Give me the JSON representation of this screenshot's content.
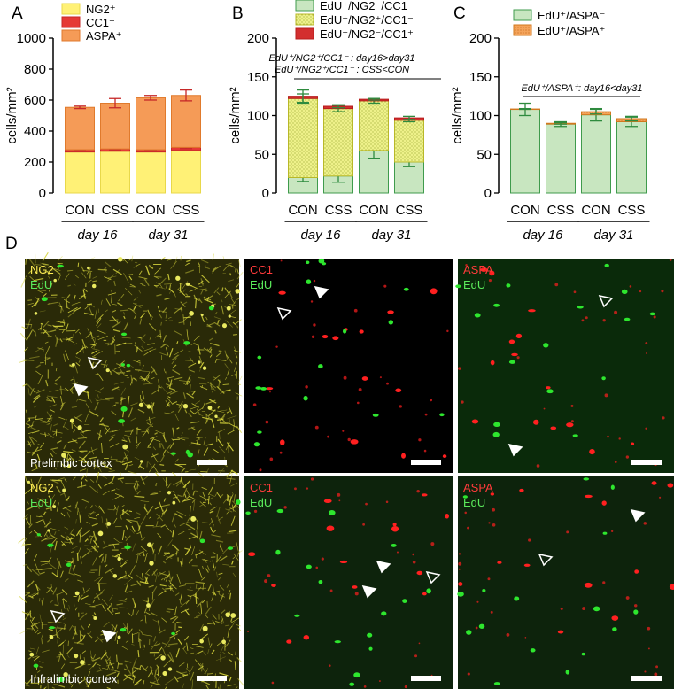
{
  "panels": {
    "a": "A",
    "b": "B",
    "c": "C",
    "d": "D"
  },
  "colors": {
    "ng2": "#fff176",
    "cc1": "#e53935",
    "aspa": "#f59b57",
    "edu_green": "#c8e6c0",
    "edu_ng2_dotted": "#eef18a",
    "edu_cc1_red": "#d32f2f",
    "edu_aspa_orange": "#f4a35a",
    "micro_yellow": "#d6d43c",
    "micro_green": "#2ee62e",
    "micro_red": "#ff2020"
  },
  "chart_data": [
    {
      "type": "bar",
      "stacked": true,
      "categories": [
        "CON",
        "CSS",
        "CON",
        "CSS"
      ],
      "groups": [
        "day 16",
        "day 31"
      ],
      "ylabel": "cells/mm²",
      "ylim": [
        0,
        1000
      ],
      "yticks": [
        "0",
        "200",
        "400",
        "600",
        "800",
        "1000"
      ],
      "legend_position": "top-left",
      "series": [
        {
          "name": "NG2⁺",
          "values": [
            265,
            270,
            265,
            275
          ],
          "error": [
            0,
            0,
            0,
            0
          ]
        },
        {
          "name": "CC1⁺",
          "values": [
            15,
            15,
            15,
            20
          ],
          "error": [
            6,
            6,
            6,
            8
          ]
        },
        {
          "name": "ASPA⁺",
          "values": [
            273,
            295,
            335,
            335
          ],
          "error": [
            8,
            30,
            15,
            35
          ]
        }
      ]
    },
    {
      "type": "bar",
      "stacked": true,
      "categories": [
        "CON",
        "CSS",
        "CON",
        "CSS"
      ],
      "groups": [
        "day 16",
        "day 31"
      ],
      "ylabel": "cells/mm²",
      "ylim": [
        0,
        200
      ],
      "yticks": [
        "0",
        "50",
        "100",
        "150",
        "200"
      ],
      "legend_position": "top",
      "annotations": [
        "EdU⁺/NG2⁺/CC1⁻ : day16>day31",
        "EdU⁺/NG2⁺/CC1⁻ : CSS<CON"
      ],
      "series": [
        {
          "name": "EdU⁺/NG2⁻/CC1⁻",
          "values": [
            20,
            22,
            55,
            40
          ],
          "error": [
            5,
            8,
            10,
            6
          ]
        },
        {
          "name": "EdU⁺/NG2⁺/CC1⁻",
          "values": [
            102,
            87,
            64,
            54
          ],
          "error": [
            6,
            4,
            3,
            2
          ]
        },
        {
          "name": "EdU⁺/NG2⁻/CC1⁺",
          "values": [
            3,
            3,
            2,
            3
          ],
          "error": [
            8,
            2,
            1,
            2
          ]
        }
      ]
    },
    {
      "type": "bar",
      "stacked": true,
      "categories": [
        "CON",
        "CSS",
        "CON",
        "CSS"
      ],
      "groups": [
        "day 16",
        "day 31"
      ],
      "ylabel": "cells/mm²",
      "ylim": [
        0,
        200
      ],
      "yticks": [
        "0",
        "50",
        "100",
        "150",
        "200"
      ],
      "legend_position": "top",
      "annotations": [
        "EdU⁺/ASPA⁺: day16<day31"
      ],
      "series": [
        {
          "name": "EdU⁺/ASPA⁻",
          "values": [
            108,
            89,
            101,
            92
          ],
          "error": [
            8,
            3,
            8,
            6
          ]
        },
        {
          "name": "EdU⁺/ASPA⁺",
          "values": [
            0.5,
            1,
            4,
            4
          ],
          "error": [
            0.5,
            1,
            3,
            3
          ]
        }
      ]
    }
  ],
  "micrographs": [
    {
      "name": "prelimbic-ng2",
      "labels": [
        "NG2",
        "EdU"
      ],
      "region": "Prelimbic cortex",
      "style": "ng2"
    },
    {
      "name": "prelimbic-cc1",
      "labels": [
        "CC1",
        "EdU"
      ],
      "region": "",
      "style": "cc1"
    },
    {
      "name": "prelimbic-aspa",
      "labels": [
        "ASPA",
        "EdU"
      ],
      "region": "",
      "style": "aspa"
    },
    {
      "name": "infralimbic-ng2",
      "labels": [
        "NG2",
        "EdU"
      ],
      "region": "Infralimbic cortex",
      "style": "ng2"
    },
    {
      "name": "infralimbic-cc1",
      "labels": [
        "CC1",
        "EdU"
      ],
      "region": "",
      "style": "cc1"
    },
    {
      "name": "infralimbic-aspa",
      "labels": [
        "ASPA",
        "EdU"
      ],
      "region": "",
      "style": "aspa"
    }
  ]
}
